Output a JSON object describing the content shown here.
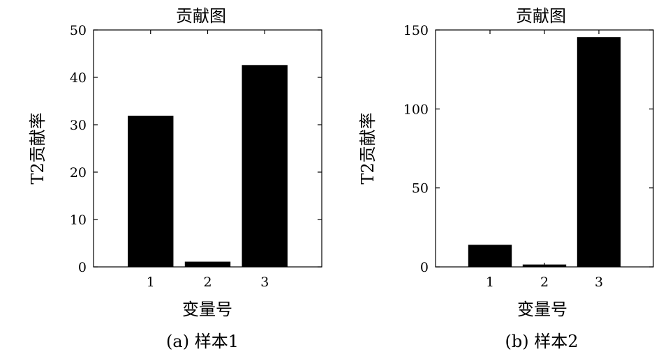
{
  "chart_data": [
    {
      "type": "bar",
      "title": "贡献图",
      "xlabel": "变量号",
      "ylabel": "T2贡献率",
      "caption": "(a) 样本1",
      "categories": [
        "1",
        "2",
        "3"
      ],
      "values": [
        31.9,
        1.1,
        42.6
      ],
      "xlim": [
        0,
        4
      ],
      "ylim": [
        0,
        50
      ],
      "yticks": [
        0,
        10,
        20,
        30,
        40,
        50
      ],
      "bar_color": "#000000",
      "grid": false
    },
    {
      "type": "bar",
      "title": "贡献图",
      "xlabel": "变量号",
      "ylabel": "T2贡献率",
      "caption": "(b) 样本2",
      "categories": [
        "1",
        "2",
        "3"
      ],
      "values": [
        14.0,
        1.5,
        145.5
      ],
      "xlim": [
        0,
        4
      ],
      "ylim": [
        0,
        150
      ],
      "yticks": [
        0,
        50,
        100,
        150
      ],
      "bar_color": "#000000",
      "grid": false
    }
  ]
}
